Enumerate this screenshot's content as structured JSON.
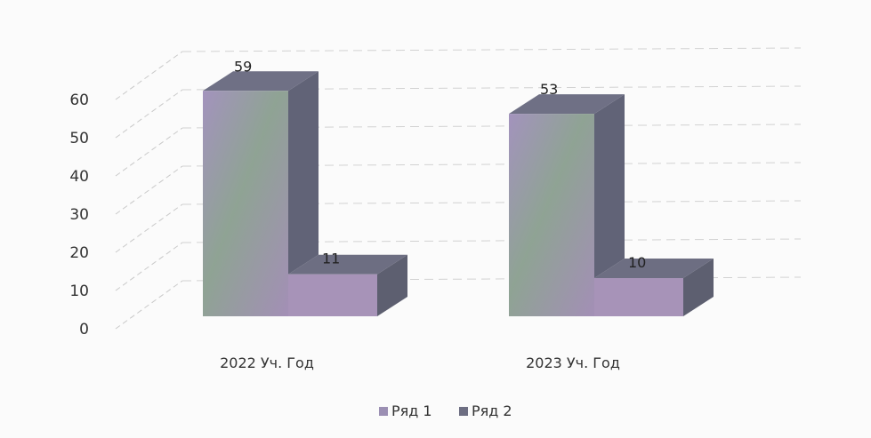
{
  "chart_data": {
    "type": "bar",
    "categories": [
      "2022 Уч. Год",
      "2023 Уч. Год"
    ],
    "series": [
      {
        "name": "Ряд 1",
        "values": [
          59,
          53
        ],
        "color": "#9b8fb3"
      },
      {
        "name": "Ряд 2",
        "values": [
          11,
          10
        ],
        "color": "#6d6e82"
      }
    ],
    "ylim": [
      0,
      60
    ],
    "yticks": [
      0,
      10,
      20,
      30,
      40,
      50,
      60
    ],
    "grid": true,
    "legend_position": "bottom",
    "data_labels": [
      "59",
      "11",
      "53",
      "10"
    ],
    "style": "3d"
  }
}
